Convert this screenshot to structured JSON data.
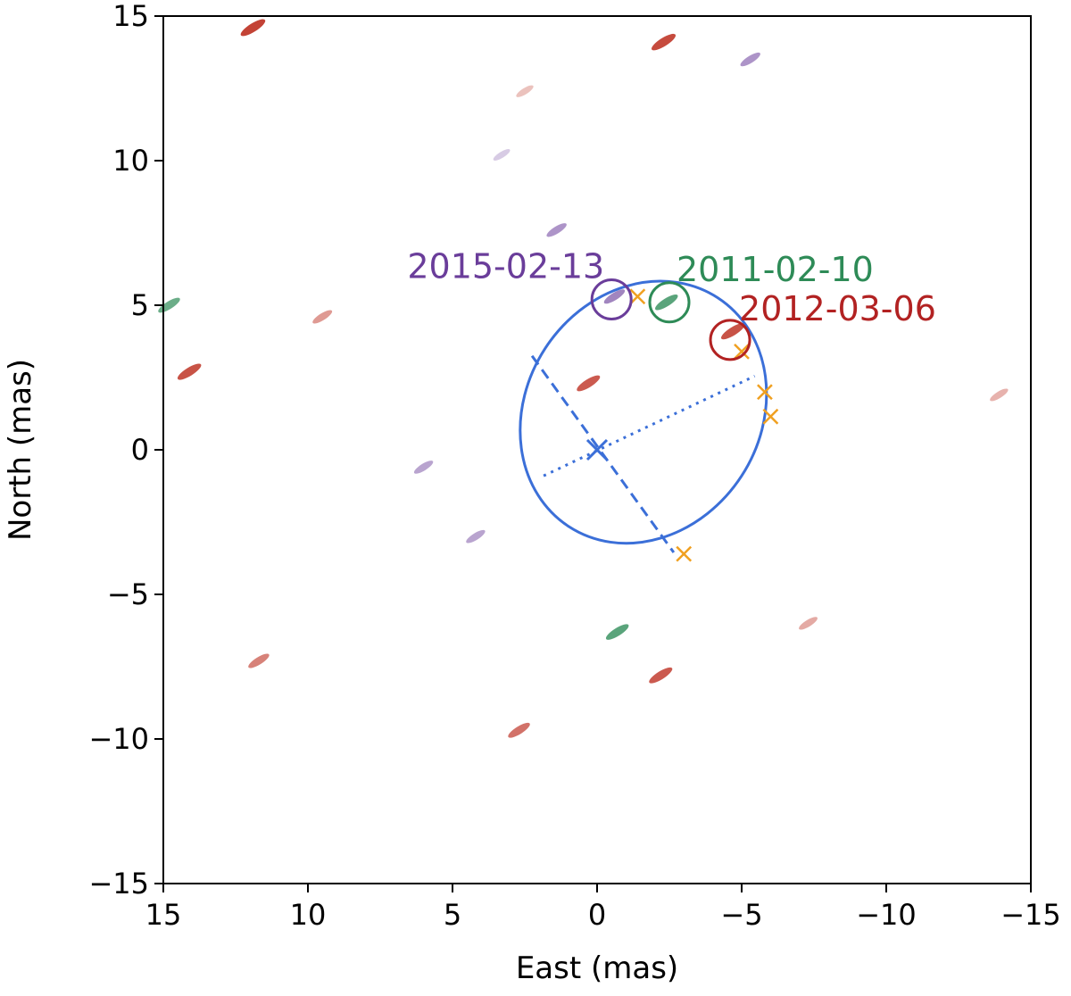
{
  "chart_data": {
    "type": "scatter",
    "title": "",
    "xlabel": "East (mas)",
    "ylabel": "North (mas)",
    "xlim": [
      15,
      -15
    ],
    "ylim": [
      -15,
      15
    ],
    "x_ticks": [
      15,
      10,
      5,
      0,
      -5,
      -10,
      -15
    ],
    "y_ticks": [
      15,
      10,
      5,
      0,
      -5,
      -10,
      -15
    ],
    "x_tick_labels": [
      "15",
      "10",
      "5",
      "0",
      "−5",
      "−10",
      "−15"
    ],
    "y_tick_labels": [
      "15",
      "10",
      "5",
      "0",
      "−5",
      "−10",
      "−15"
    ],
    "grid": false,
    "colors": {
      "red": "#c0392b",
      "green": "#2e8b57",
      "purple": "#6a3d9a",
      "orbit": "#3b6fd8",
      "marker": "#f0a020",
      "label_purple": "#6a3d9a",
      "label_green": "#2e8b57",
      "label_red": "#b22222"
    },
    "series": [
      {
        "color": "red",
        "points": [
          {
            "x": 11.9,
            "y": 14.6,
            "s": 1.0
          },
          {
            "x": -2.3,
            "y": 14.1,
            "s": 0.95
          },
          {
            "x": -4.7,
            "y": 4.1,
            "s": 0.9
          },
          {
            "x": 0.3,
            "y": 2.3,
            "s": 0.85
          },
          {
            "x": 14.1,
            "y": 2.7,
            "s": 0.9
          },
          {
            "x": 9.5,
            "y": 4.6,
            "s": 0.45
          },
          {
            "x": 11.7,
            "y": -7.3,
            "s": 0.6
          },
          {
            "x": -2.2,
            "y": -7.8,
            "s": 0.85
          },
          {
            "x": 2.7,
            "y": -9.7,
            "s": 0.7
          },
          {
            "x": -7.3,
            "y": -6.0,
            "s": 0.35
          },
          {
            "x": -13.9,
            "y": 1.9,
            "s": 0.3
          },
          {
            "x": 2.5,
            "y": 12.4,
            "s": 0.2
          }
        ]
      },
      {
        "color": "green",
        "points": [
          {
            "x": -2.4,
            "y": 5.1,
            "s": 0.8
          },
          {
            "x": 14.8,
            "y": 5.0,
            "s": 0.7
          },
          {
            "x": -0.7,
            "y": -6.3,
            "s": 0.8
          }
        ]
      },
      {
        "color": "purple",
        "points": [
          {
            "x": -0.6,
            "y": 5.3,
            "s": 0.6
          },
          {
            "x": 1.4,
            "y": 7.6,
            "s": 0.5
          },
          {
            "x": -5.3,
            "y": 13.5,
            "s": 0.5
          },
          {
            "x": 6.0,
            "y": -0.6,
            "s": 0.4
          },
          {
            "x": 4.2,
            "y": -3.0,
            "s": 0.4
          },
          {
            "x": 3.3,
            "y": 10.2,
            "s": 0.15
          }
        ]
      }
    ],
    "detections": [
      {
        "label": "2015-02-13",
        "x": -0.5,
        "y": 5.2,
        "color": "label_purple"
      },
      {
        "label": "2011-02-10",
        "x": -2.5,
        "y": 5.1,
        "color": "label_green"
      },
      {
        "label": "2012-03-06",
        "x": -4.6,
        "y": 3.8,
        "color": "label_red"
      }
    ],
    "orbit": {
      "center": [
        -1.6,
        1.3
      ],
      "semi_major": 4.72,
      "semi_minor": 4.05,
      "angle_deg": -57,
      "origin_marker": [
        0,
        0
      ],
      "major_axis": [
        [
          2.25,
          3.25
        ],
        [
          -2.65,
          -3.55
        ]
      ],
      "minor_axis": [
        [
          1.85,
          -0.9
        ],
        [
          -5.45,
          2.55
        ]
      ],
      "predicted_positions": [
        {
          "x": -1.4,
          "y": 5.3
        },
        {
          "x": -5.0,
          "y": 3.4
        },
        {
          "x": -5.8,
          "y": 2.0
        },
        {
          "x": -6.0,
          "y": 1.15
        },
        {
          "x": -3.0,
          "y": -3.6
        }
      ]
    }
  }
}
